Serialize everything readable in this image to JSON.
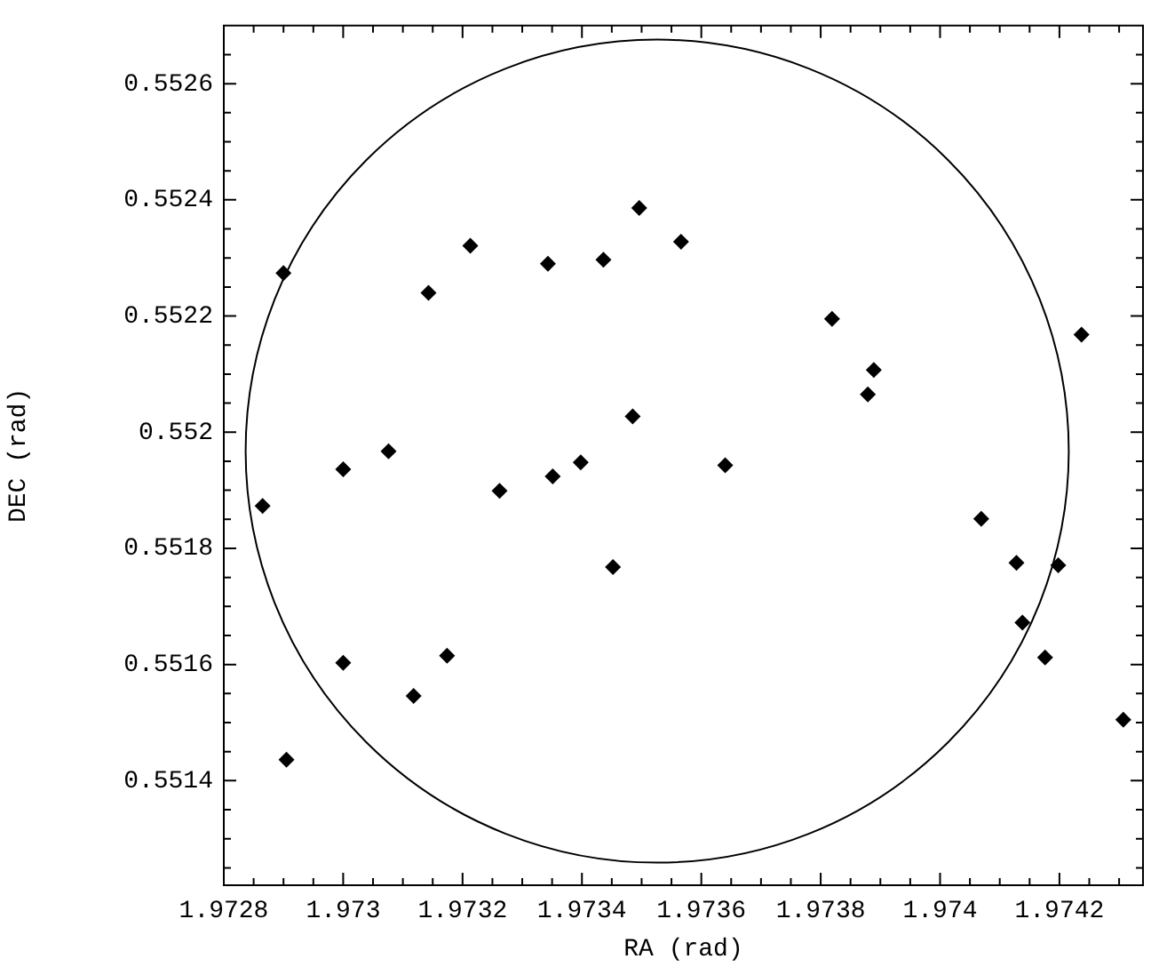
{
  "chart_data": {
    "type": "scatter",
    "xlabel": "RA (rad)",
    "ylabel": "DEC (rad)",
    "xlim": [
      1.9728,
      1.97434
    ],
    "ylim": [
      0.55122,
      0.5527
    ],
    "xticks": [
      1.9728,
      {
        "value": 1.97285,
        "label": null
      },
      {
        "value": 1.9729,
        "label": null
      },
      {
        "value": 1.97295,
        "label": null
      },
      1.973,
      {
        "value": 1.97305,
        "label": null
      },
      {
        "value": 1.9731,
        "label": null
      },
      {
        "value": 1.97315,
        "label": null
      },
      1.9732,
      {
        "value": 1.97325,
        "label": null
      },
      {
        "value": 1.9733,
        "label": null
      },
      {
        "value": 1.97335,
        "label": null
      },
      1.9734,
      {
        "value": 1.97345,
        "label": null
      },
      {
        "value": 1.9735,
        "label": null
      },
      {
        "value": 1.97355,
        "label": null
      },
      1.9736,
      {
        "value": 1.97365,
        "label": null
      },
      {
        "value": 1.9737,
        "label": null
      },
      {
        "value": 1.97375,
        "label": null
      },
      1.9738,
      {
        "value": 1.97385,
        "label": null
      },
      {
        "value": 1.9739,
        "label": null
      },
      {
        "value": 1.97395,
        "label": null
      },
      1.974,
      {
        "value": 1.97405,
        "label": null
      },
      {
        "value": 1.9741,
        "label": null
      },
      {
        "value": 1.97415,
        "label": null
      },
      1.9742,
      {
        "value": 1.97425,
        "label": null
      },
      {
        "value": 1.9743,
        "label": null
      }
    ],
    "yticks": [
      {
        "value": 0.55125,
        "label": null
      },
      {
        "value": 0.5513,
        "label": null
      },
      {
        "value": 0.55135,
        "label": null
      },
      0.5514,
      {
        "value": 0.55145,
        "label": null
      },
      {
        "value": 0.5515,
        "label": null
      },
      {
        "value": 0.55155,
        "label": null
      },
      0.5516,
      {
        "value": 0.55165,
        "label": null
      },
      {
        "value": 0.5517,
        "label": null
      },
      {
        "value": 0.55175,
        "label": null
      },
      0.5518,
      {
        "value": 0.55185,
        "label": null
      },
      {
        "value": 0.5519,
        "label": null
      },
      {
        "value": 0.55195,
        "label": null
      },
      0.552,
      {
        "value": 0.55205,
        "label": null
      },
      {
        "value": 0.5521,
        "label": null
      },
      {
        "value": 0.55215,
        "label": null
      },
      0.5522,
      {
        "value": 0.55225,
        "label": null
      },
      {
        "value": 0.5523,
        "label": null
      },
      {
        "value": 0.55235,
        "label": null
      },
      0.5524,
      {
        "value": 0.55245,
        "label": null
      },
      {
        "value": 0.5525,
        "label": null
      },
      {
        "value": 0.55255,
        "label": null
      },
      0.5526,
      {
        "value": 0.55265,
        "label": null
      }
    ],
    "grid": false,
    "legend": false,
    "marker": "diamond",
    "series": [
      {
        "type": "scatter",
        "color": "#000000",
        "x": [
          1.9729,
          1.973143,
          1.973213,
          1.973343,
          1.973,
          1.973076,
          1.973262,
          1.973351,
          1.973398,
          1.973496,
          1.973566,
          1.973436,
          1.973819,
          1.973889,
          1.973879,
          1.974237,
          1.973485,
          1.97364,
          1.972865,
          1.973,
          1.972905,
          1.973118,
          1.973174,
          1.973452,
          1.974069,
          1.974128,
          1.974198,
          1.974138,
          1.974176,
          1.974307
        ],
        "values": [
          0.552274,
          0.55224,
          0.552321,
          0.55229,
          0.551936,
          0.551967,
          0.551899,
          0.551924,
          0.551948,
          0.552386,
          0.552328,
          0.552297,
          0.552195,
          0.552107,
          0.552065,
          0.552168,
          0.552027,
          0.551943,
          0.551873,
          0.551603,
          0.551436,
          0.551546,
          0.551615,
          0.551768,
          0.551851,
          0.551775,
          0.551771,
          0.551672,
          0.551612,
          0.551505
        ]
      }
    ]
  }
}
